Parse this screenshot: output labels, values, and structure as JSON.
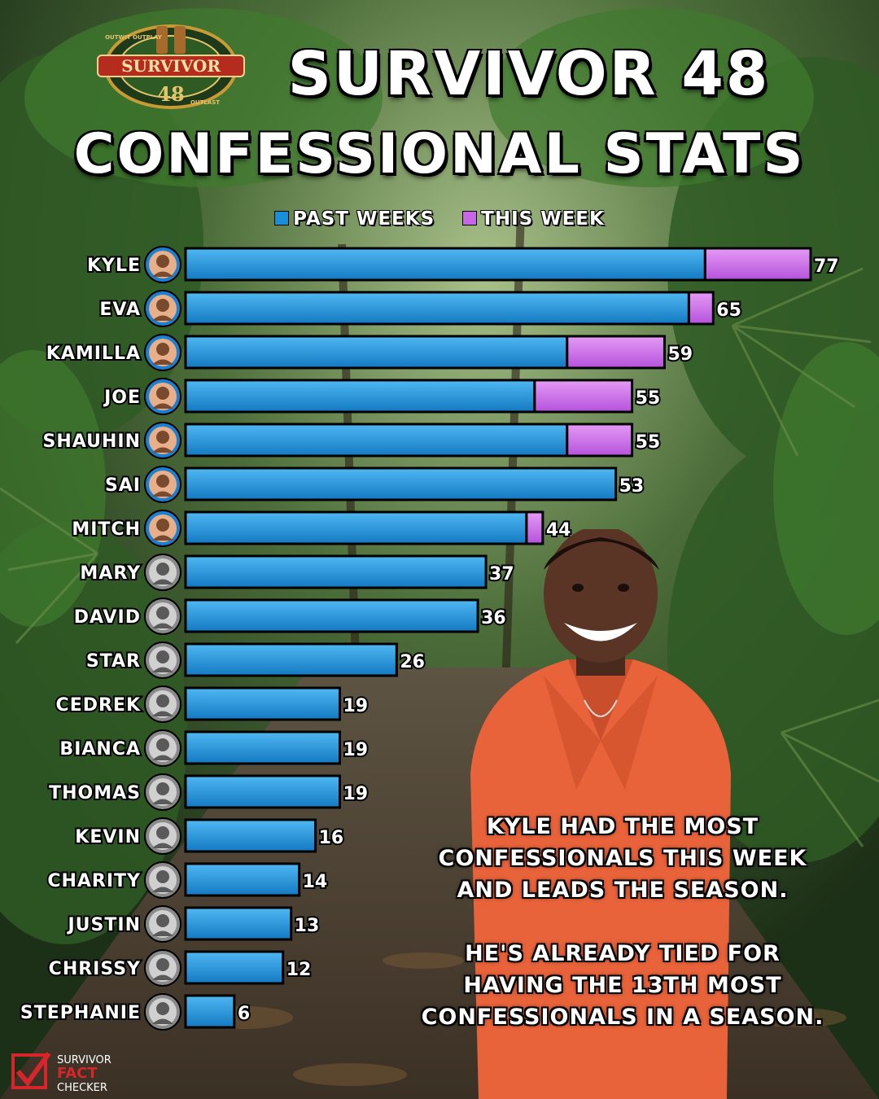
{
  "header": {
    "logo_text": "SURVIVOR",
    "logo_number": "48",
    "logo_ring_top": "OUTWIT OUTPLAY",
    "logo_ring_bottom": "OUTLAST",
    "title_line1": "SURVIVOR 48",
    "title_line2": "CONFESSIONAL STATS"
  },
  "colors": {
    "past": "#1a8fd8",
    "this_week": "#c667e6"
  },
  "chart_data": {
    "type": "bar",
    "orientation": "horizontal",
    "stacked": true,
    "legend_position": "top-center",
    "categories": [
      "KYLE",
      "EVA",
      "KAMILLA",
      "JOE",
      "SHAUHIN",
      "SAI",
      "MITCH",
      "MARY",
      "DAVID",
      "STAR",
      "CEDREK",
      "BIANCA",
      "THOMAS",
      "KEVIN",
      "CHARITY",
      "JUSTIN",
      "CHRISSY",
      "STEPHANIE"
    ],
    "series": [
      {
        "name": "PAST WEEKS",
        "values": [
          64,
          62,
          47,
          43,
          47,
          53,
          42,
          37,
          36,
          26,
          19,
          19,
          19,
          16,
          14,
          13,
          12,
          6
        ]
      },
      {
        "name": "THIS WEEK",
        "values": [
          13,
          3,
          12,
          12,
          8,
          0,
          2,
          0,
          0,
          0,
          0,
          0,
          0,
          0,
          0,
          0,
          0,
          0
        ]
      }
    ],
    "totals": [
      77,
      65,
      59,
      55,
      55,
      53,
      44,
      37,
      36,
      26,
      19,
      19,
      19,
      16,
      14,
      13,
      12,
      6
    ],
    "active": [
      true,
      true,
      true,
      true,
      true,
      true,
      true,
      false,
      false,
      false,
      false,
      false,
      false,
      false,
      false,
      false,
      false,
      false
    ],
    "xlim": [
      0,
      77
    ]
  },
  "notes": {
    "line1": "KYLE HAD THE MOST",
    "line2": "CONFESSIONALS THIS WEEK",
    "line3": "AND LEADS THE SEASON.",
    "line4": "HE'S ALREADY TIED FOR",
    "line5": "HAVING THE 13TH MOST",
    "line6": "CONFESSIONALS IN A SEASON."
  },
  "footer": {
    "brand1": "SURVIVOR",
    "brand2": "FACT",
    "brand3": "CHECKER"
  }
}
